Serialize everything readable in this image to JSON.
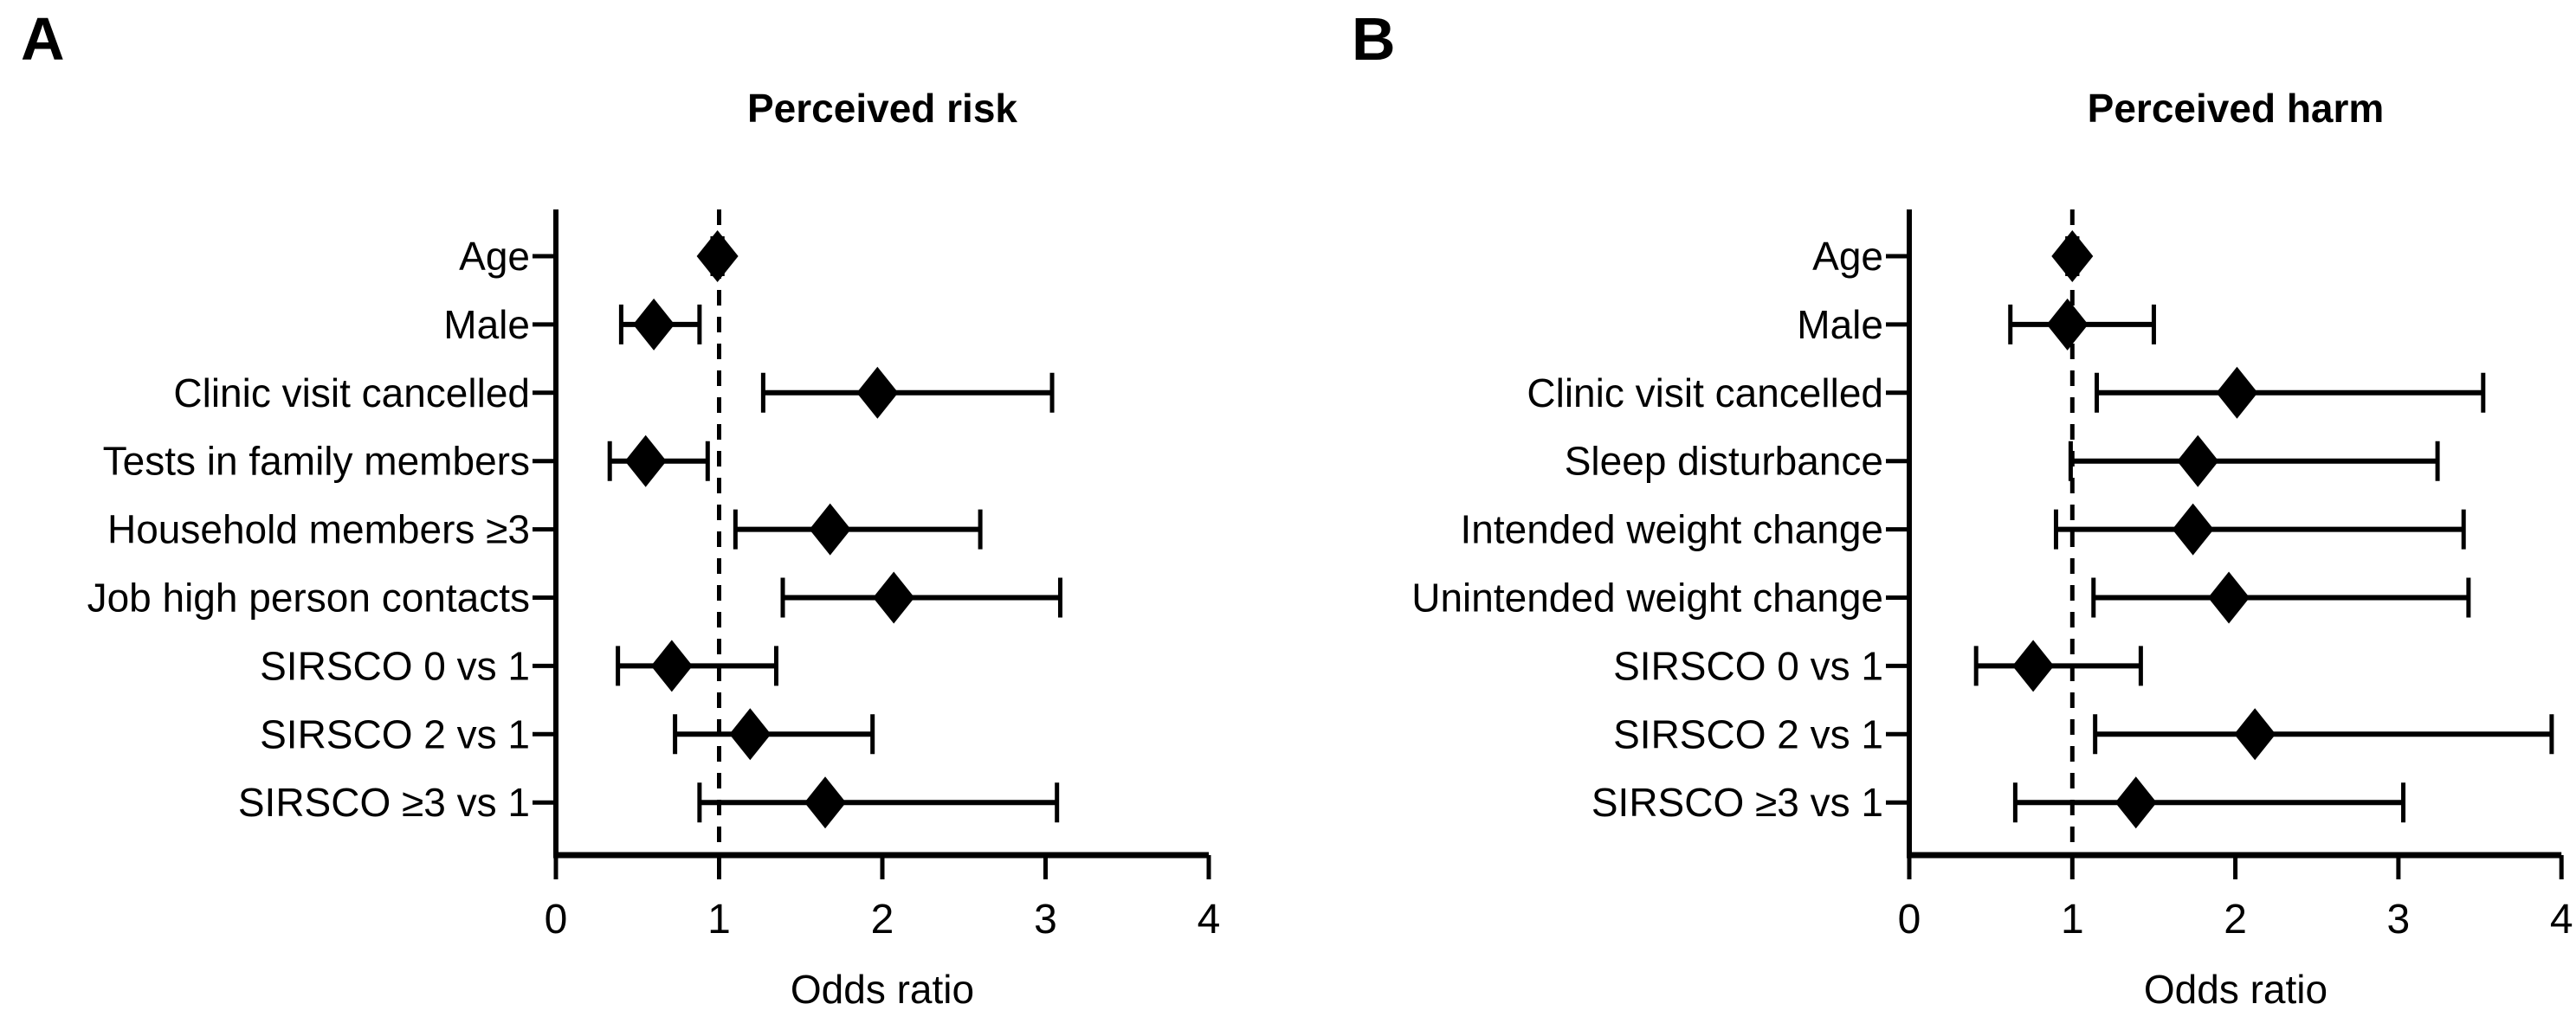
{
  "figure_colors": {
    "ink": "#000000",
    "background": "#ffffff"
  },
  "chart_data": [
    {
      "type": "scatter",
      "subtype": "forest-plot",
      "panel_label": "A",
      "title": "Perceived risk",
      "xlabel": "Odds ratio",
      "xlim": [
        0,
        4
      ],
      "x_ticks": [
        "0",
        "1",
        "2",
        "3",
        "4"
      ],
      "reference_line_x": 1,
      "grid": false,
      "legend": "none",
      "categories": [
        "Age",
        "Male",
        "Clinic visit cancelled",
        "Tests in family members",
        "Household members ≥3",
        "Job high person contacts",
        "SIRSCO 0 vs 1",
        "SIRSCO 2 vs 1",
        "SIRSCO ≥3 vs 1"
      ],
      "values": [
        0.99,
        0.6,
        1.97,
        0.55,
        1.68,
        2.07,
        0.71,
        1.19,
        1.65
      ],
      "ci_low": [
        0.96,
        0.4,
        1.27,
        0.33,
        1.1,
        1.39,
        0.38,
        0.73,
        0.88
      ],
      "ci_high": [
        1.02,
        0.88,
        3.04,
        0.93,
        2.6,
        3.09,
        1.35,
        1.94,
        3.07
      ]
    },
    {
      "type": "scatter",
      "subtype": "forest-plot",
      "panel_label": "B",
      "title": "Perceived harm",
      "xlabel": "Odds ratio",
      "xlim": [
        0,
        4
      ],
      "x_ticks": [
        "0",
        "1",
        "2",
        "3",
        "4"
      ],
      "reference_line_x": 1,
      "grid": false,
      "legend": "none",
      "categories": [
        "Age",
        "Male",
        "Clinic visit cancelled",
        "Sleep disturbance",
        "Intended weight change",
        "Unintended weight change",
        "SIRSCO 0 vs 1",
        "SIRSCO 2 vs 1",
        "SIRSCO ≥3 vs 1"
      ],
      "values": [
        1.0,
        0.97,
        2.01,
        1.77,
        1.74,
        1.96,
        0.76,
        2.12,
        1.39
      ],
      "ci_low": [
        0.97,
        0.62,
        1.15,
        0.99,
        0.9,
        1.13,
        0.41,
        1.14,
        0.65
      ],
      "ci_high": [
        1.03,
        1.5,
        3.52,
        3.24,
        3.4,
        3.43,
        1.42,
        3.94,
        3.03
      ]
    }
  ]
}
